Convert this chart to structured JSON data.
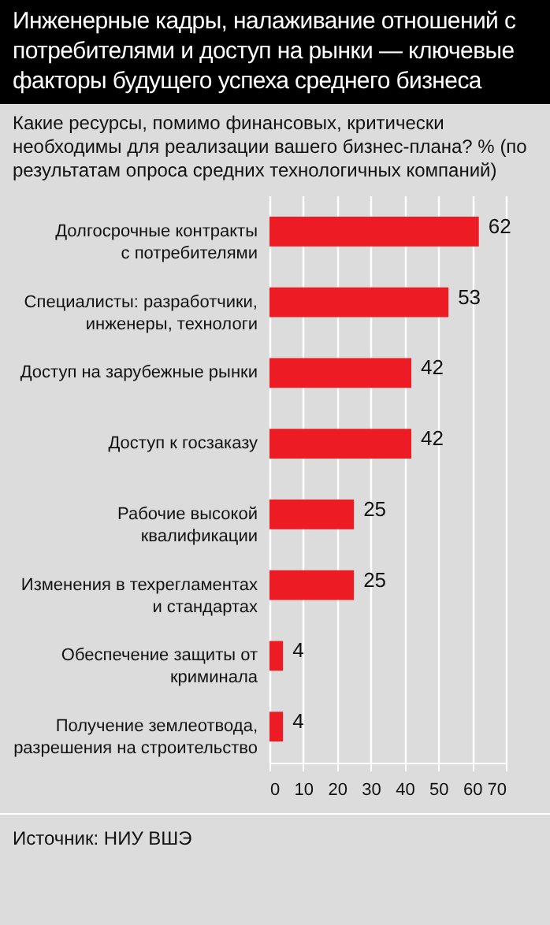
{
  "chart_data": {
    "type": "bar",
    "orientation": "horizontal",
    "title": "Инженерные кадры, налаживание отношений с потребителями и доступ на рынки — ключевые факторы будущего успеха среднего бизнеса",
    "subtitle": "Какие ресурсы, помимо финансовых, критически необходимы для реализации вашего бизнес-плана? % (по результатам опроса средних технологичных компаний)",
    "annotations": [
      "Источник: НИУ ВШЭ"
    ],
    "categories": [
      "Долгосрочные контракты\nс потребителями",
      "Специалисты: разработчики,\nинженеры, технологи",
      "Доступ на зарубежные рынки",
      "Доступ к госзаказу",
      "Рабочие высокой\nквалификации",
      "Изменения в техрегламентах\nи стандартах",
      "Обеспечение защиты от\nкриминала",
      "Получение землеотвода,\nразрешения на строительство"
    ],
    "values": [
      62,
      53,
      42,
      42,
      25,
      25,
      4,
      4
    ],
    "color": "#ed1c24",
    "xlim": [
      0,
      70
    ],
    "xticks": [
      0,
      10,
      20,
      30,
      40,
      50,
      60,
      70
    ],
    "grid": "x",
    "data_labels": true
  }
}
